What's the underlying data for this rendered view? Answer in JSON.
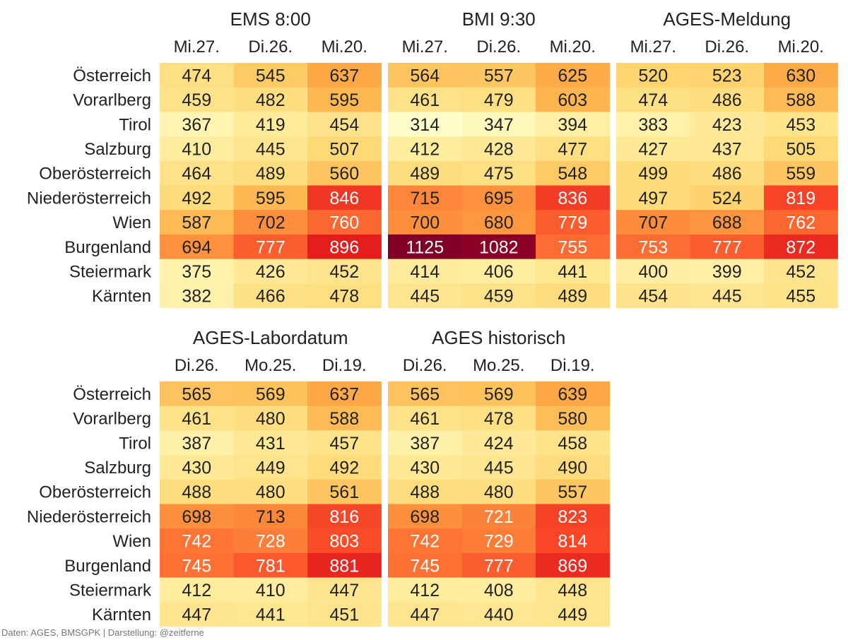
{
  "rows": [
    "Österreich",
    "Vorarlberg",
    "Tirol",
    "Salzburg",
    "Oberösterreich",
    "Niederösterreich",
    "Wien",
    "Burgenland",
    "Steiermark",
    "Kärnten"
  ],
  "source": "Daten: AGES, BMSGPK | Darstellung: @zeitferne",
  "colors": {
    "text_dark": "#222222",
    "text_light": "#ffffff"
  },
  "chart_data": [
    {
      "type": "heatmap",
      "title": "EMS 8:00",
      "columns": [
        "Mi.27.",
        "Di.26.",
        "Mi.20."
      ],
      "values": [
        [
          474,
          545,
          637
        ],
        [
          459,
          482,
          595
        ],
        [
          367,
          419,
          454
        ],
        [
          410,
          445,
          507
        ],
        [
          464,
          489,
          560
        ],
        [
          492,
          595,
          846
        ],
        [
          587,
          702,
          760
        ],
        [
          694,
          777,
          896
        ],
        [
          375,
          426,
          452
        ],
        [
          382,
          466,
          478
        ]
      ]
    },
    {
      "type": "heatmap",
      "title": "BMI 9:30",
      "columns": [
        "Mi.27.",
        "Di.26.",
        "Mi.20."
      ],
      "values": [
        [
          564,
          557,
          625
        ],
        [
          461,
          479,
          603
        ],
        [
          314,
          347,
          394
        ],
        [
          412,
          428,
          477
        ],
        [
          489,
          475,
          548
        ],
        [
          715,
          695,
          836
        ],
        [
          700,
          680,
          779
        ],
        [
          1125,
          1082,
          755
        ],
        [
          414,
          406,
          441
        ],
        [
          445,
          459,
          489
        ]
      ]
    },
    {
      "type": "heatmap",
      "title": "AGES-Meldung",
      "columns": [
        "Mi.27.",
        "Di.26.",
        "Mi.20."
      ],
      "values": [
        [
          520,
          523,
          630
        ],
        [
          474,
          486,
          588
        ],
        [
          383,
          423,
          453
        ],
        [
          427,
          437,
          505
        ],
        [
          499,
          486,
          559
        ],
        [
          497,
          524,
          819
        ],
        [
          707,
          688,
          762
        ],
        [
          753,
          777,
          872
        ],
        [
          400,
          399,
          452
        ],
        [
          454,
          445,
          455
        ]
      ]
    },
    {
      "type": "heatmap",
      "title": "AGES-Labordatum",
      "columns": [
        "Di.26.",
        "Mo.25.",
        "Di.19."
      ],
      "values": [
        [
          565,
          569,
          637
        ],
        [
          461,
          480,
          588
        ],
        [
          387,
          431,
          457
        ],
        [
          430,
          449,
          492
        ],
        [
          488,
          480,
          561
        ],
        [
          698,
          713,
          816
        ],
        [
          742,
          728,
          803
        ],
        [
          745,
          781,
          881
        ],
        [
          412,
          410,
          447
        ],
        [
          447,
          441,
          451
        ]
      ]
    },
    {
      "type": "heatmap",
      "title": "AGES historisch",
      "columns": [
        "Di.26.",
        "Mo.25.",
        "Di.19."
      ],
      "values": [
        [
          565,
          569,
          639
        ],
        [
          461,
          478,
          580
        ],
        [
          387,
          424,
          458
        ],
        [
          430,
          445,
          490
        ],
        [
          488,
          480,
          557
        ],
        [
          698,
          721,
          823
        ],
        [
          742,
          729,
          814
        ],
        [
          745,
          777,
          869
        ],
        [
          412,
          408,
          448
        ],
        [
          447,
          440,
          449
        ]
      ]
    }
  ]
}
